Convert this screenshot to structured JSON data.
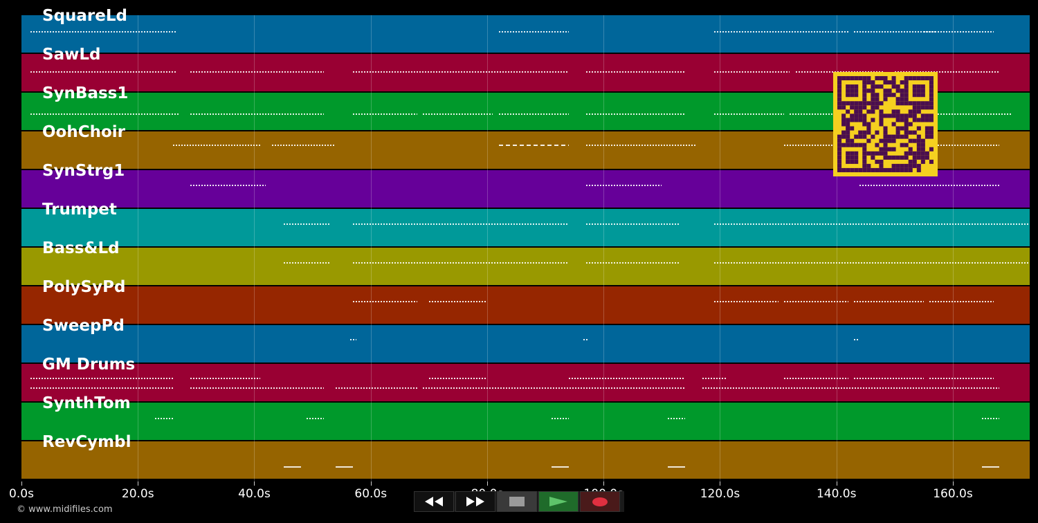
{
  "tracks": [
    {
      "name": "SquareLd",
      "color": "#00669a"
    },
    {
      "name": "SawLd",
      "color": "#990033"
    },
    {
      "name": "SynBass1",
      "color": "#00992b"
    },
    {
      "name": "OohChoir",
      "color": "#966400"
    },
    {
      "name": "SynStrg1",
      "color": "#660099"
    },
    {
      "name": "Trumpet",
      "color": "#009999"
    },
    {
      "name": "Bass&Ld",
      "color": "#999900"
    },
    {
      "name": "PolySyPd",
      "color": "#962600"
    },
    {
      "name": "SweepPd",
      "color": "#00669a"
    },
    {
      "name": "GM Drums",
      "color": "#990033"
    },
    {
      "name": "SynthTom",
      "color": "#00992b"
    },
    {
      "name": "RevCymbl",
      "color": "#966400"
    }
  ],
  "timeline": {
    "ticks": [
      "0.0s",
      "20.0s",
      "40.0s",
      "60.0s",
      "80.0s",
      "100.0s",
      "120.0s",
      "140.0s",
      "160.0s"
    ],
    "tick_seconds": [
      0,
      20,
      40,
      60,
      80,
      100,
      120,
      140,
      160
    ],
    "max_seconds": 173.2
  },
  "footer": {
    "copyright": "© www.midifiles.com"
  },
  "transport": {
    "rewind_icon": "rewind-icon",
    "fastforward_icon": "fast-forward-icon",
    "stop_icon": "stop-icon",
    "play_icon": "play-icon",
    "record_icon": "record-icon",
    "play_color": "#5ec46a",
    "record_color": "#e03040"
  },
  "qr_code": {
    "color_fg": "#4a0e4e",
    "color_bg": "#f5d020"
  },
  "note_segments": [
    [
      [
        1.5,
        26.5,
        "dotted",
        -1
      ],
      [
        82,
        94,
        "dotted",
        -1
      ],
      [
        119,
        142,
        "dotted",
        -1
      ],
      [
        143,
        157,
        "dotted",
        -1
      ],
      [
        155,
        167,
        "dotted",
        -1
      ]
    ],
    [
      [
        1.5,
        26.5,
        "dotted",
        1
      ],
      [
        29,
        52,
        "dotted",
        1
      ],
      [
        57,
        94,
        "dotted",
        1
      ],
      [
        97,
        114,
        "dotted",
        1
      ],
      [
        119,
        132,
        "dotted",
        1
      ],
      [
        133,
        148,
        "dotted",
        1
      ],
      [
        150,
        168,
        "dotted",
        1
      ]
    ],
    [
      [
        1.5,
        27,
        "dotted",
        6
      ],
      [
        29,
        52,
        "dotted",
        6
      ],
      [
        57,
        68,
        "dotted",
        6
      ],
      [
        69,
        81,
        "dotted",
        6
      ],
      [
        82,
        94,
        "dotted",
        6
      ],
      [
        97,
        114,
        "dotted",
        6
      ],
      [
        119,
        131,
        "dotted",
        6
      ],
      [
        132,
        143,
        "dotted",
        6
      ],
      [
        156,
        170,
        "dotted",
        6
      ]
    ],
    [
      [
        26,
        41,
        "dotted",
        -5
      ],
      [
        43,
        54,
        "dotted",
        -5
      ],
      [
        82,
        94,
        "dashed",
        -5
      ],
      [
        97,
        116,
        "dotted",
        -5
      ],
      [
        131,
        148,
        "dotted",
        -5
      ],
      [
        155,
        168,
        "dotted",
        -5
      ]
    ],
    [
      [
        29,
        42,
        "dotted",
        -3
      ],
      [
        97,
        110,
        "dotted",
        -3
      ],
      [
        144,
        168,
        "dotted",
        -3
      ]
    ],
    [
      [
        45,
        53,
        "dotted",
        -3
      ],
      [
        57,
        94,
        "dotted",
        -3
      ],
      [
        97,
        113,
        "dotted",
        -3
      ],
      [
        119,
        173,
        "dotted",
        -3
      ]
    ],
    [
      [
        45,
        53,
        "dotted",
        -3
      ],
      [
        57,
        94,
        "dotted",
        -3
      ],
      [
        97,
        113,
        "dotted",
        -3
      ],
      [
        119,
        173,
        "dotted",
        -3
      ]
    ],
    [
      [
        57,
        68,
        "dotted",
        -3
      ],
      [
        70,
        80,
        "dotted",
        -3
      ],
      [
        119,
        130,
        "dotted",
        -3
      ],
      [
        131,
        142,
        "dotted",
        -3
      ],
      [
        143,
        155,
        "dotted",
        -3
      ],
      [
        156,
        167,
        "dotted",
        -3
      ]
    ],
    [
      [
        56.5,
        57.5,
        "dotted",
        -4
      ],
      [
        96.5,
        97.5,
        "dotted",
        -4
      ],
      [
        143,
        144,
        "dotted",
        -4
      ]
    ],
    [
      [
        1.5,
        26,
        "dotted",
        -4
      ],
      [
        29,
        41,
        "dotted",
        -4
      ],
      [
        70,
        80,
        "dotted",
        -4
      ],
      [
        94,
        114,
        "dotted",
        -4
      ],
      [
        117,
        121,
        "dotted",
        -4
      ],
      [
        131,
        142,
        "dotted",
        -4
      ],
      [
        143,
        155,
        "dotted",
        -4
      ],
      [
        156,
        167,
        "dotted",
        -4
      ],
      [
        1.5,
        26,
        "dotted",
        10
      ],
      [
        29,
        52,
        "dotted",
        10
      ],
      [
        54,
        68,
        "dotted",
        10
      ],
      [
        69,
        114,
        "dotted",
        10
      ],
      [
        117,
        168,
        "dotted",
        10
      ]
    ],
    [
      [
        23,
        26,
        "dotted",
        -2
      ],
      [
        49,
        52,
        "dotted",
        -2
      ],
      [
        91,
        94,
        "dotted",
        -2
      ],
      [
        111,
        114,
        "dotted",
        -2
      ],
      [
        165,
        168,
        "dotted",
        -2
      ]
    ],
    [
      [
        45,
        48,
        "solid",
        12
      ],
      [
        54,
        57,
        "solid",
        12
      ],
      [
        91,
        94,
        "solid",
        12
      ],
      [
        111,
        114,
        "solid",
        12
      ],
      [
        165,
        168,
        "solid",
        12
      ]
    ]
  ]
}
